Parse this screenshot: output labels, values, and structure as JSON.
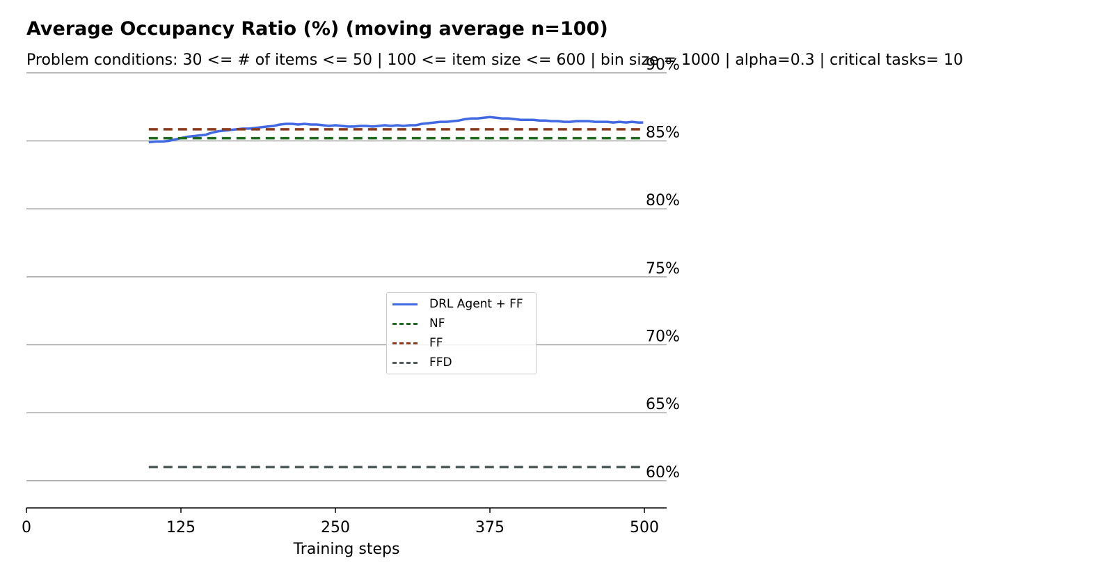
{
  "chart_data": {
    "type": "line",
    "title": "Average Occupancy Ratio (%) (moving average n=100)",
    "subtitle": "Problem conditions: 30 <= # of items <= 50 | 100 <= item size <= 600 | bin size = 1000 | alpha=0.3 | critical tasks= 10",
    "xlabel": "Training steps",
    "ylabel": "",
    "xlim": [
      0,
      518
    ],
    "ylim": [
      58,
      90.5
    ],
    "xticks": [
      0,
      125,
      250,
      375,
      500
    ],
    "xtick_labels": [
      "0",
      "125",
      "250",
      "375",
      "500"
    ],
    "yticks": [
      60,
      65,
      70,
      75,
      80,
      85,
      90
    ],
    "ytick_labels": [
      "60%",
      "65%",
      "70%",
      "75%",
      "80%",
      "85%",
      "90%"
    ],
    "grid": "horizontal",
    "legend_position": "center",
    "series": [
      {
        "name": "DRL Agent + FF",
        "style": "solid",
        "color": "#4169E1",
        "x": [
          99,
          105,
          110,
          115,
          120,
          125,
          130,
          135,
          140,
          145,
          150,
          155,
          160,
          165,
          170,
          175,
          180,
          185,
          190,
          195,
          200,
          205,
          210,
          215,
          220,
          225,
          230,
          235,
          240,
          245,
          250,
          255,
          260,
          265,
          270,
          275,
          280,
          285,
          290,
          295,
          300,
          305,
          310,
          315,
          320,
          325,
          330,
          335,
          340,
          345,
          350,
          355,
          360,
          365,
          370,
          375,
          380,
          385,
          390,
          395,
          400,
          405,
          410,
          415,
          420,
          425,
          430,
          435,
          440,
          445,
          450,
          455,
          460,
          465,
          470,
          475,
          480,
          485,
          490,
          495,
          499
        ],
        "values": [
          84.9,
          84.95,
          84.95,
          85.0,
          85.1,
          85.2,
          85.3,
          85.35,
          85.4,
          85.45,
          85.6,
          85.7,
          85.75,
          85.8,
          85.85,
          85.9,
          85.9,
          85.95,
          86.0,
          86.05,
          86.1,
          86.2,
          86.25,
          86.25,
          86.2,
          86.25,
          86.2,
          86.2,
          86.15,
          86.1,
          86.15,
          86.1,
          86.05,
          86.05,
          86.1,
          86.1,
          86.05,
          86.1,
          86.15,
          86.1,
          86.15,
          86.1,
          86.15,
          86.15,
          86.25,
          86.3,
          86.35,
          86.4,
          86.4,
          86.45,
          86.5,
          86.6,
          86.65,
          86.65,
          86.7,
          86.75,
          86.7,
          86.65,
          86.65,
          86.6,
          86.55,
          86.55,
          86.55,
          86.5,
          86.5,
          86.45,
          86.45,
          86.4,
          86.4,
          86.45,
          86.45,
          86.45,
          86.4,
          86.4,
          86.4,
          86.35,
          86.4,
          86.35,
          86.4,
          86.35,
          86.35
        ]
      },
      {
        "name": "NF",
        "style": "dashed",
        "color": "#1E6B1E",
        "x": [
          99,
          499
        ],
        "values": [
          85.2,
          85.2
        ]
      },
      {
        "name": "FF",
        "style": "dashed",
        "color": "#8B3A1E",
        "x": [
          99,
          499
        ],
        "values": [
          85.85,
          85.85
        ]
      },
      {
        "name": "FFD",
        "style": "dashed",
        "color": "#4F5A5A",
        "x": [
          99,
          499
        ],
        "values": [
          61.0,
          61.0
        ]
      }
    ]
  }
}
